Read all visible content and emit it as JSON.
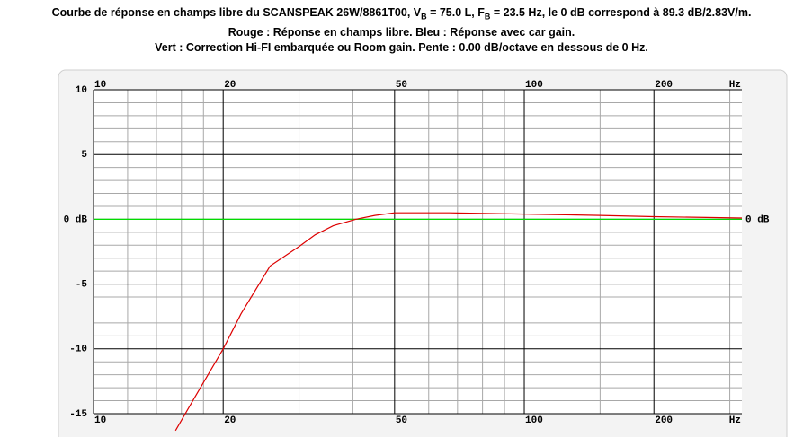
{
  "chart_data": {
    "type": "line",
    "title": [
      "Courbe de réponse en champs libre du SCANSPEAK 26W/8861T00, V",
      "B",
      " = 75.0 L, F",
      "B",
      " = 23.5 Hz, le 0 dB correspond à 89.3 dB/2.83V/m."
    ],
    "subtitle": [
      "Rouge : Réponse en champs libre. Bleu : Réponse avec car gain.",
      "Vert : Correction Hi-FI embarquée ou Room gain. Pente : 0.00 dB/octave en dessous de 0 Hz."
    ],
    "x_scale": "log",
    "xlim": [
      10,
      320
    ],
    "ylim": [
      -15,
      10
    ],
    "xticks": [
      10,
      20,
      50,
      100,
      200,
      {
        "value": 320,
        "label": "Hz"
      }
    ],
    "yticks": [
      10,
      5,
      {
        "value": 0,
        "label": "0 dB"
      },
      -5,
      -10,
      -15
    ],
    "x_minor_ticks": [
      12,
      14,
      16,
      18,
      30,
      40,
      60,
      70,
      80,
      90,
      150,
      300
    ],
    "y_minor_ticks": [
      9,
      8,
      7,
      6,
      4,
      3,
      2,
      1,
      -1,
      -2,
      -3,
      -4,
      -6,
      -7,
      -8,
      -9,
      -11,
      -12,
      -13,
      -14
    ],
    "grid": true,
    "series": [
      {
        "color": "#dd0000",
        "x": [
          15.5,
          17,
          20,
          22,
          25.7,
          30,
          32.7,
          36,
          40.6,
          45,
          50,
          67,
          100,
          150,
          200,
          320
        ],
        "values": [
          -16.3,
          -14,
          -10,
          -7.3,
          -3.6,
          -2.1,
          -1.2,
          -0.5,
          0,
          0.3,
          0.5,
          0.5,
          0.4,
          0.3,
          0.2,
          0.1
        ]
      },
      {
        "color": "#00dd00",
        "x": [
          10,
          320
        ],
        "values": [
          0,
          0
        ]
      }
    ]
  }
}
